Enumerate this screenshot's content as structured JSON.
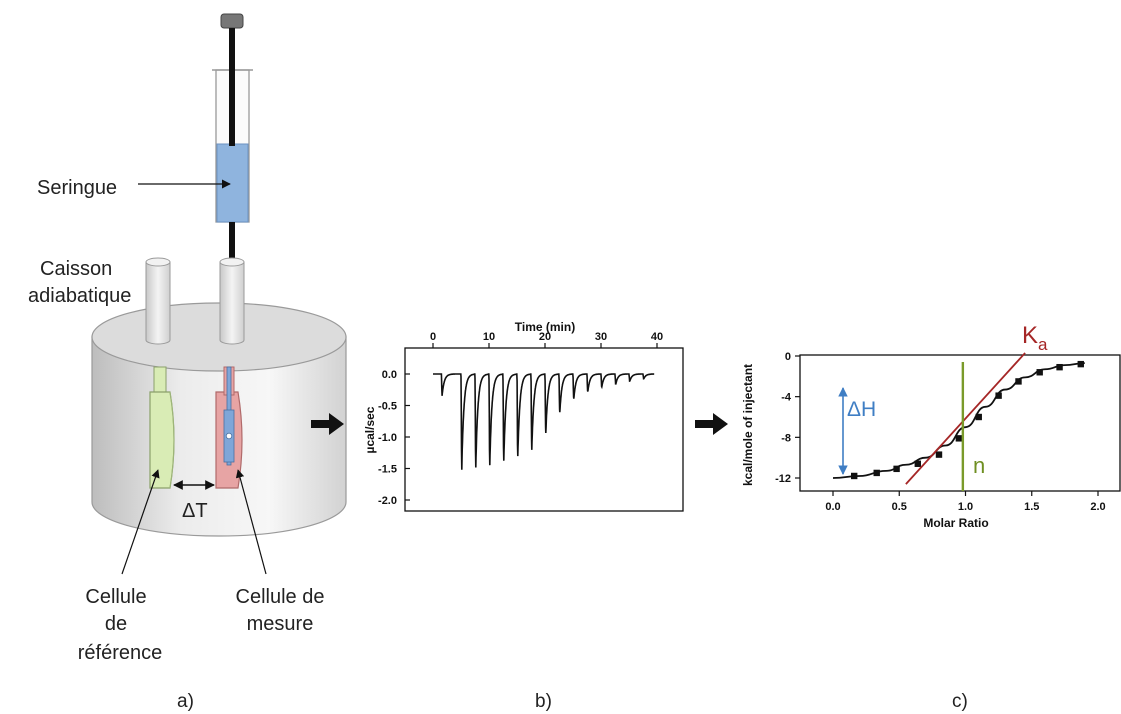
{
  "diagram": {
    "panels": [
      "a)",
      "b)",
      "c)"
    ],
    "labels": {
      "syringe": "Seringue",
      "adiabatic_line1": "Caisson",
      "adiabatic_line2": "adiabatique",
      "delta_t": "ΔT",
      "reference_cell": [
        "Cellule",
        "de",
        "référence"
      ],
      "measure_cell": [
        "Cellule de",
        "mesure"
      ]
    },
    "colors": {
      "syringe_liquid": "#8fb4de",
      "reference_cell": "#d9ecb5",
      "measure_cell": "#e7a4a4",
      "injection_tube": "#7fa6d8"
    }
  },
  "chart_data": [
    {
      "type": "line",
      "panel": "b)",
      "xlabel": "Time (min)",
      "ylabel": "µcal/sec",
      "x_ticks": [
        "0",
        "10",
        "20",
        "30",
        "40"
      ],
      "y_ticks": [
        "0.0",
        "-0.5",
        "-1.0",
        "-1.5",
        "-2.0"
      ],
      "y_tick_values": [
        0.0,
        -0.5,
        -1.0,
        -1.5,
        -2.0
      ],
      "xlim": [
        0,
        40
      ],
      "ylim": [
        -2.0,
        0.2
      ],
      "baseline": 0.0,
      "peaks": {
        "times": [
          1.5,
          5.0,
          7.5,
          10.0,
          12.5,
          15.0,
          17.5,
          20.0,
          22.5,
          25.0,
          27.5,
          30.0,
          32.5,
          35.0,
          37.5
        ],
        "minima": [
          -0.35,
          -1.58,
          -1.55,
          -1.52,
          -1.45,
          -1.38,
          -1.28,
          -1.0,
          -0.65,
          -0.42,
          -0.3,
          -0.22,
          -0.17,
          -0.12,
          -0.08
        ]
      }
    },
    {
      "type": "scatter",
      "panel": "c)",
      "xlabel": "Molar Ratio",
      "ylabel": "kcal/mole of injectant",
      "x_ticks": [
        "0.0",
        "0.5",
        "1.0",
        "1.5",
        "2.0"
      ],
      "y_ticks": [
        "0",
        "-4",
        "-8",
        "-12"
      ],
      "y_tick_values": [
        0,
        -4,
        -8,
        -12
      ],
      "xlim": [
        0.0,
        2.0
      ],
      "ylim": [
        -13,
        0
      ],
      "series": [
        {
          "x": [
            0.16,
            0.33,
            0.48,
            0.64,
            0.8,
            0.95,
            1.1,
            1.25,
            1.4,
            1.56,
            1.71,
            1.87
          ],
          "y": [
            -11.8,
            -11.5,
            -11.1,
            -10.6,
            -9.7,
            -8.1,
            -6.0,
            -3.9,
            -2.5,
            -1.6,
            -1.1,
            -0.8
          ]
        }
      ],
      "fit_curve": {
        "x": [
          0.0,
          0.2,
          0.4,
          0.55,
          0.7,
          0.85,
          1.0,
          1.15,
          1.3,
          1.45,
          1.6,
          1.75,
          1.9
        ],
        "y": [
          -12.0,
          -11.8,
          -11.3,
          -10.7,
          -10.0,
          -8.8,
          -7.0,
          -5.0,
          -3.3,
          -2.1,
          -1.3,
          -0.9,
          -0.7
        ]
      },
      "annotations": {
        "delta_h": "ΔH",
        "ka_main": "K",
        "ka_sub": "a",
        "n": "n",
        "n_x": 0.98,
        "ka_line": {
          "x": [
            0.55,
            1.45
          ],
          "y": [
            -12.6,
            0.3
          ]
        }
      }
    }
  ]
}
